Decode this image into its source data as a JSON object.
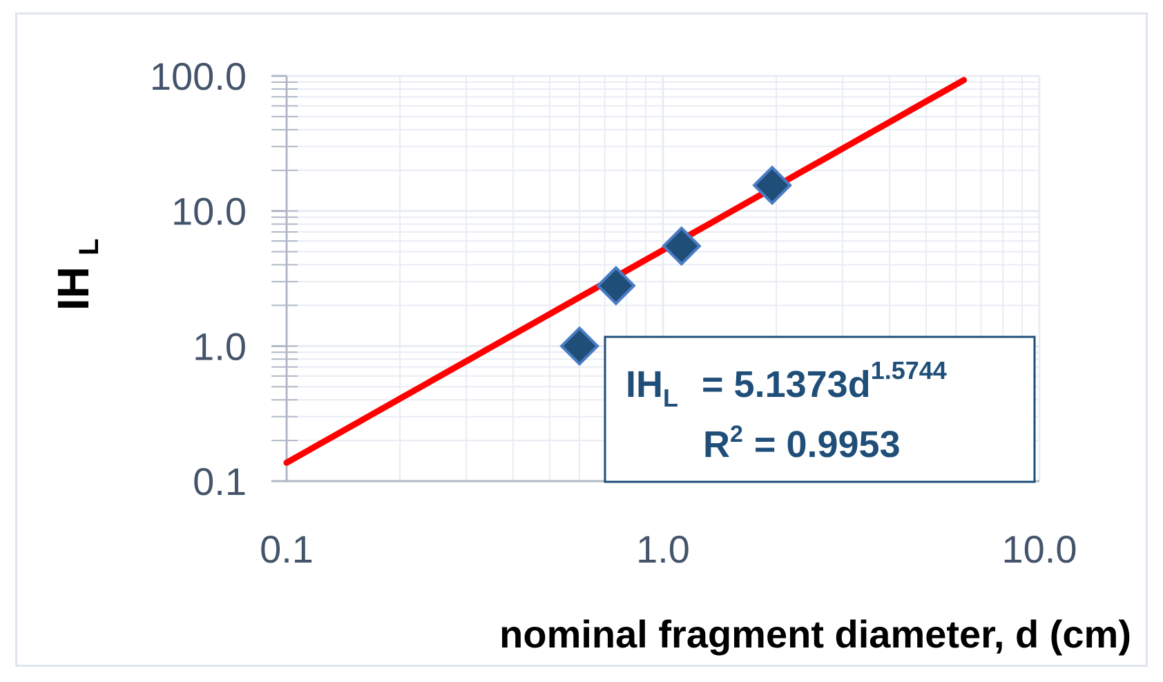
{
  "colors": {
    "grid": "#e8ecf3",
    "axis": "#b0b8c6",
    "marker_fill": "#1f4e79",
    "marker_stroke": "#4a7cc4",
    "trendline": "#ff0000",
    "equation": "#1f4e79",
    "tick_text": "#44546a"
  },
  "chart_data": {
    "type": "scatter",
    "x_scale": "log",
    "y_scale": "log",
    "xlim": [
      0.1,
      10
    ],
    "ylim": [
      0.1,
      100
    ],
    "xlabel": "nominal fragment diameter, d (cm)",
    "ylabel": "IH",
    "ylabel_subscript": "L",
    "x_ticks": [
      "0.1",
      "1.0",
      "10.0"
    ],
    "y_ticks": [
      "0.1",
      "1.0",
      "10.0",
      "100.0"
    ],
    "grid": true,
    "series": [
      {
        "marker": "diamond",
        "points": [
          {
            "x": 0.6,
            "y": 1.0
          },
          {
            "x": 0.75,
            "y": 2.8
          },
          {
            "x": 1.12,
            "y": 5.5
          },
          {
            "x": 1.95,
            "y": 15.5
          }
        ]
      }
    ],
    "trendline": {
      "type": "power",
      "a": 5.1373,
      "b": 1.5744,
      "x_range": [
        0.1,
        6.3
      ]
    },
    "annotation": {
      "line1_prefix": "IH",
      "line1_sub": "L",
      "line1_mid": "= 5.1373d",
      "line1_sup": "1.5744",
      "line2_prefix": "R",
      "line2_sup": "2",
      "line2_rest": "= 0.9953"
    }
  }
}
